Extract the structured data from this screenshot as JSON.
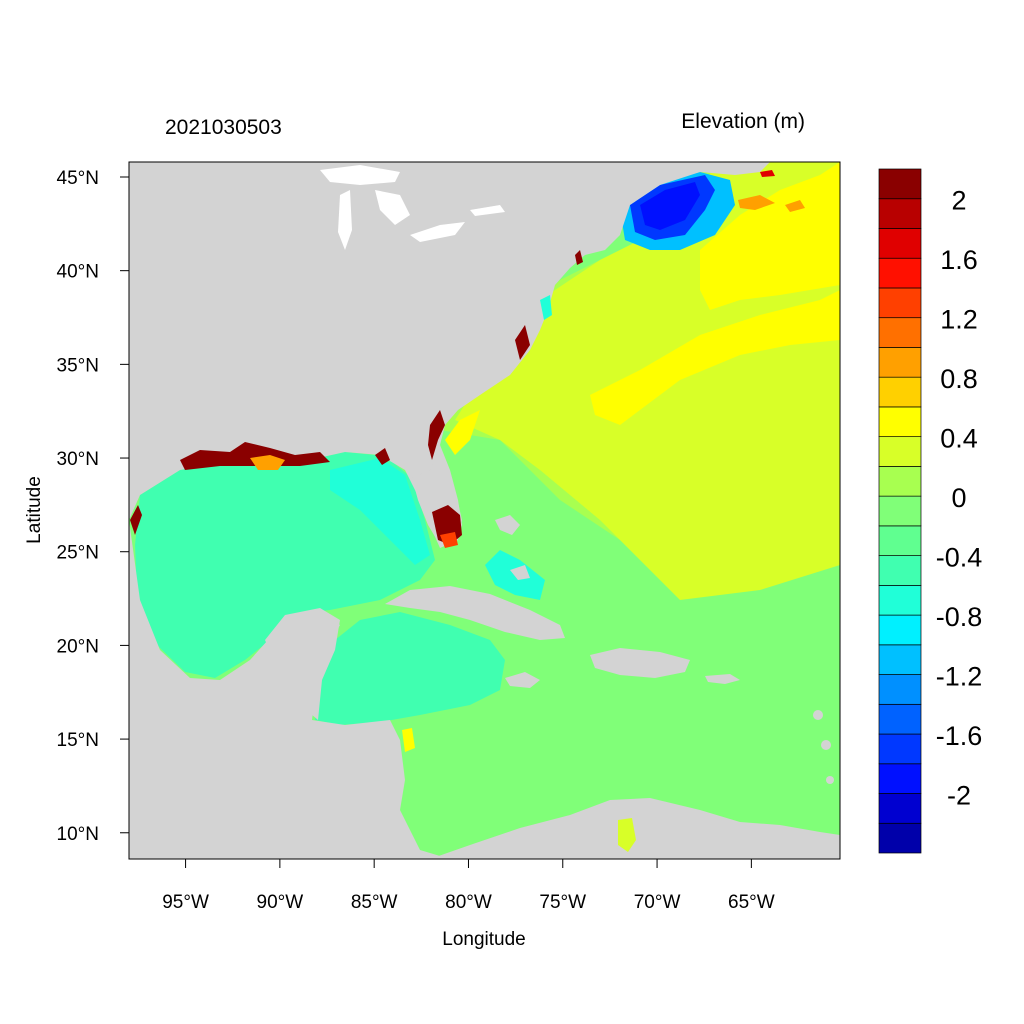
{
  "header": {
    "left_string": "2021030503",
    "right_string": "Elevation (m)"
  },
  "axes": {
    "xlabel": "Longitude",
    "ylabel": "Latitude",
    "lon_range": [
      -98,
      -60.3
    ],
    "lat_range": [
      8.6,
      45.8
    ],
    "x_ticks": [
      {
        "value": -95,
        "label": "95°W"
      },
      {
        "value": -90,
        "label": "90°W"
      },
      {
        "value": -85,
        "label": "85°W"
      },
      {
        "value": -80,
        "label": "80°W"
      },
      {
        "value": -75,
        "label": "75°W"
      },
      {
        "value": -70,
        "label": "70°W"
      },
      {
        "value": -65,
        "label": "65°W"
      }
    ],
    "y_ticks": [
      {
        "value": 45,
        "label": "45°N"
      },
      {
        "value": 40,
        "label": "40°N"
      },
      {
        "value": 35,
        "label": "35°N"
      },
      {
        "value": 30,
        "label": "30°N"
      },
      {
        "value": 25,
        "label": "25°N"
      },
      {
        "value": 20,
        "label": "20°N"
      },
      {
        "value": 15,
        "label": "15°N"
      },
      {
        "value": 10,
        "label": "10°N"
      }
    ]
  },
  "colorbar": {
    "colors": [
      "#0000aa",
      "#0000d0",
      "#0010ff",
      "#0038ff",
      "#0062ff",
      "#0090ff",
      "#00c0ff",
      "#00f0ff",
      "#20ffd8",
      "#40ffb0",
      "#60ff90",
      "#80ff78",
      "#a8ff50",
      "#d8ff28",
      "#ffff00",
      "#ffd000",
      "#ffa000",
      "#ff7000",
      "#ff4000",
      "#ff1000",
      "#e00000",
      "#b80000",
      "#8a0000"
    ],
    "labels": [
      {
        "boundary": 2,
        "text": "-2"
      },
      {
        "boundary": 4,
        "text": "-1.6"
      },
      {
        "boundary": 6,
        "text": "-1.2"
      },
      {
        "boundary": 8,
        "text": "-0.8"
      },
      {
        "boundary": 10,
        "text": "-0.4"
      },
      {
        "boundary": 12,
        "text": "0"
      },
      {
        "boundary": 14,
        "text": "0.4"
      },
      {
        "boundary": 16,
        "text": "0.8"
      },
      {
        "boundary": 18,
        "text": "1.2"
      },
      {
        "boundary": 20,
        "text": "1.6"
      },
      {
        "boundary": 22,
        "text": "2"
      }
    ]
  },
  "colors": {
    "land": "#d3d3d3",
    "lakes": "#ffffff",
    "ocean_0": "#80ff78",
    "ocean_neg02": "#60ff90",
    "ocean_neg04": "#40ffb0",
    "ocean_02": "#a8ff50",
    "ocean_04": "#d8ff28",
    "ocean_06": "#ffff00",
    "high": "#8a0000",
    "low": "#0010ff"
  }
}
